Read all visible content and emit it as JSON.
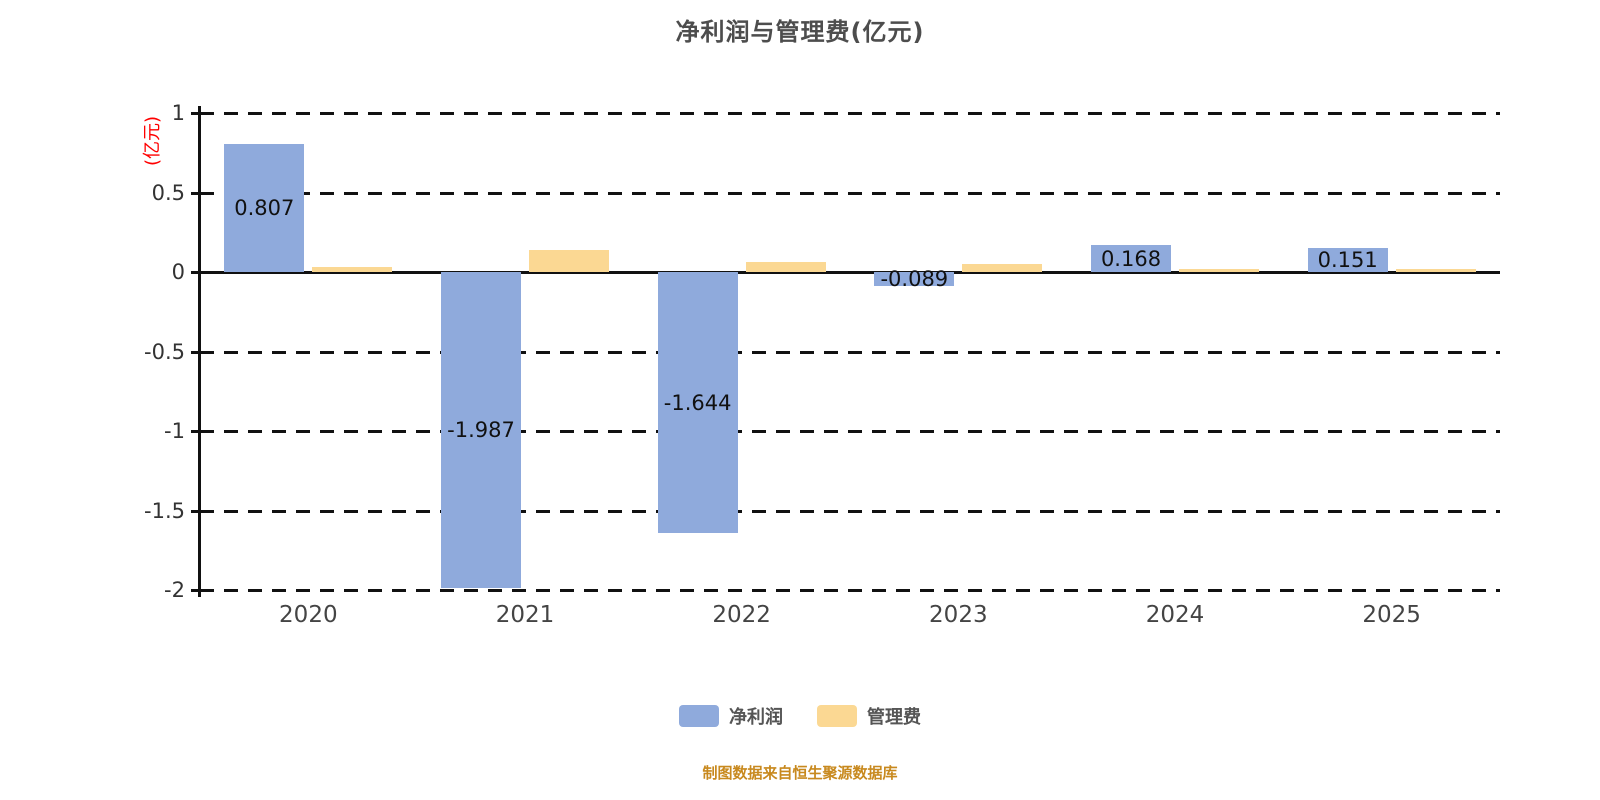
{
  "chart_data": {
    "type": "bar",
    "title": "净利润与管理费(亿元)",
    "ylabel": "(亿元)",
    "xlabel": "",
    "categories": [
      "2020",
      "2021",
      "2022",
      "2023",
      "2024",
      "2025"
    ],
    "series": [
      {
        "key": "net-profit",
        "name": "净利润",
        "color": "#8faadc",
        "values": [
          0.807,
          -1.987,
          -1.644,
          -0.089,
          0.168,
          0.151
        ],
        "labels": [
          "0.807",
          "-1.987",
          "-1.644",
          "-0.089",
          "0.168",
          "0.151"
        ]
      },
      {
        "key": "management-fee",
        "name": "管理费",
        "color": "#fbd893",
        "values": [
          0.03,
          0.14,
          0.06,
          0.05,
          0.02,
          0.02
        ],
        "labels": []
      }
    ],
    "ylim": [
      -2,
      1
    ],
    "yticks": [
      1,
      0.5,
      0,
      -0.5,
      -1,
      -1.5,
      -2
    ],
    "ytick_labels": [
      "1",
      "0.5",
      "0",
      "-0.5",
      "-1",
      "-1.5",
      "-2"
    ],
    "grid": "horizontal dashed, zero line solid",
    "legend_position": "bottom"
  },
  "footer": {
    "source_note": "制图数据来自恒生聚源数据库"
  },
  "colors": {
    "title": "#4d4d4d",
    "axis_text": "#333333",
    "yaxis_name": "#ff0000",
    "footer_note": "#c8891e",
    "net_profit_bar": "#8faadc",
    "management_fee_bar": "#fbd893"
  }
}
